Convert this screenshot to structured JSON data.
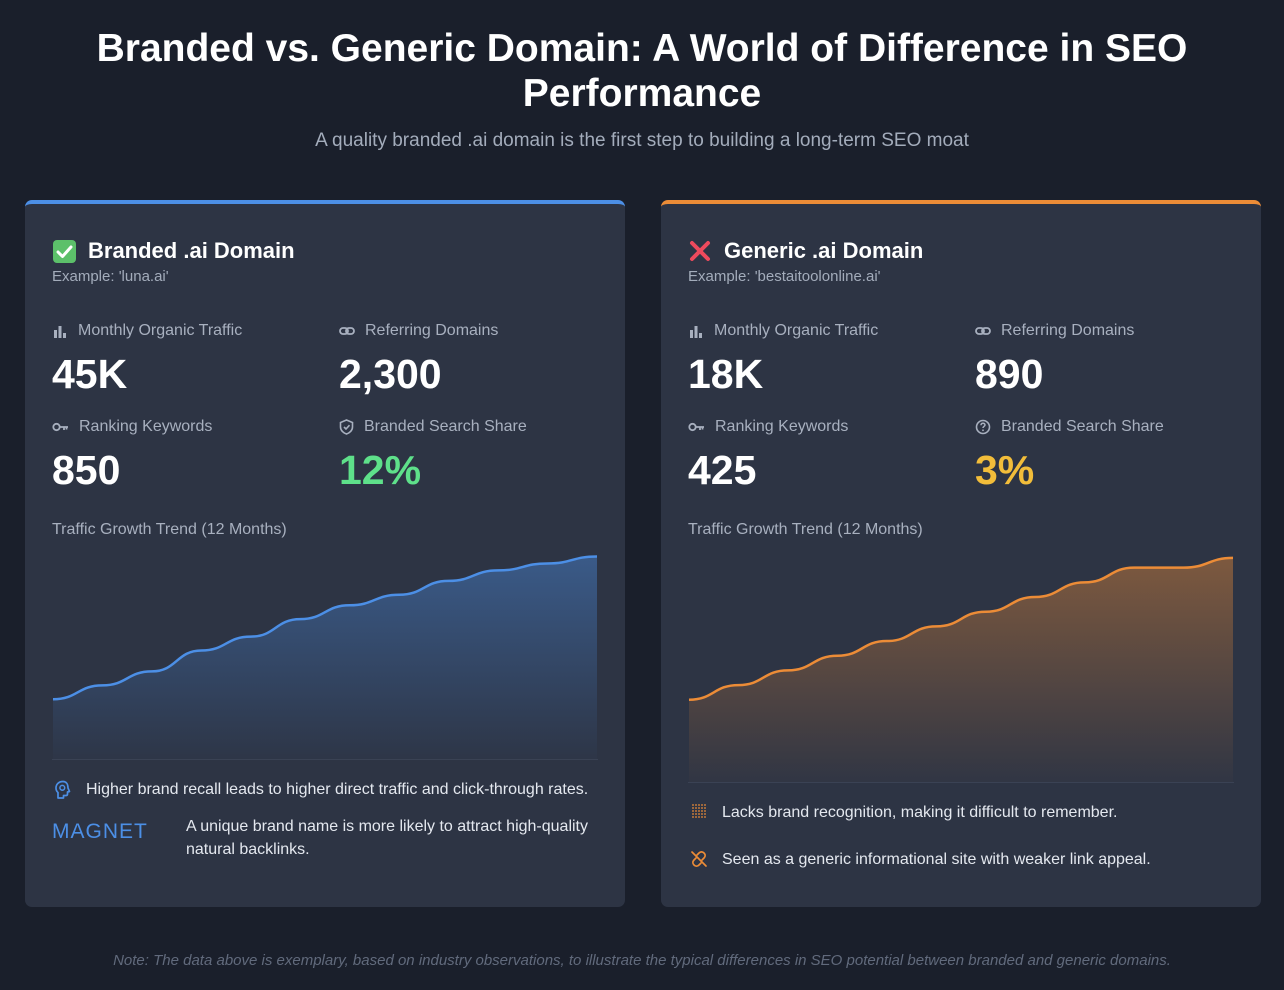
{
  "header": {
    "title": "Branded vs. Generic Domain: A World of Difference in SEO Performance",
    "subtitle": "A quality branded .ai domain is the first step to building a long-term SEO moat"
  },
  "colors": {
    "background": "#1a1f2b",
    "card": "#2d3444",
    "branded_accent": "#4c8fe6",
    "generic_accent": "#ec8c37",
    "green": "#5ee08a",
    "yellow": "#f2bd3a"
  },
  "branded": {
    "icon": "check-mark-icon",
    "title": "Branded .ai Domain",
    "example": "Example: 'luna.ai'",
    "metrics": {
      "traffic_label": "Monthly Organic Traffic",
      "traffic_value": "45K",
      "referring_label": "Referring Domains",
      "referring_value": "2,300",
      "keywords_label": "Ranking Keywords",
      "keywords_value": "850",
      "share_label": "Branded Search Share",
      "share_value": "12%"
    },
    "trend_label": "Traffic Growth Trend (12 Months)",
    "notes": [
      {
        "icon": "brain-icon",
        "text": "Higher brand recall leads to higher direct traffic and click-through rates."
      },
      {
        "icon": "magnet-logo",
        "logo_text": "MAGNET",
        "text": "A unique brand name is more likely to attract high-quality natural backlinks."
      }
    ]
  },
  "generic": {
    "icon": "cross-mark-icon",
    "title": "Generic .ai Domain",
    "example": "Example: 'bestaitoolonline.ai'",
    "metrics": {
      "traffic_label": "Monthly Organic Traffic",
      "traffic_value": "18K",
      "referring_label": "Referring Domains",
      "referring_value": "890",
      "keywords_label": "Ranking Keywords",
      "keywords_value": "425",
      "share_label": "Branded Search Share",
      "share_value": "3%"
    },
    "trend_label": "Traffic Growth Trend (12 Months)",
    "notes": [
      {
        "icon": "dotted-grid-icon",
        "text": "Lacks brand recognition, making it difficult to remember."
      },
      {
        "icon": "broken-link-icon",
        "text": "Seen as a generic informational site with weaker link appeal."
      }
    ]
  },
  "footnote": "Note: The data above is exemplary, based on industry observations, to illustrate the typical differences in SEO potential between branded and generic domains.",
  "chart_data": [
    {
      "type": "area",
      "title": "Traffic Growth Trend (12 Months)",
      "series": [
        {
          "values": [
            10,
            14,
            18,
            24,
            28,
            33,
            37,
            40,
            44,
            47,
            49,
            51
          ]
        }
      ],
      "ylim": [
        -6,
        52
      ],
      "grid": false,
      "color": "#4c8fe6"
    },
    {
      "type": "area",
      "title": "Traffic Growth Trend (12 Months)",
      "series": [
        {
          "values": [
            4,
            7,
            10,
            13,
            16,
            19,
            22,
            25,
            28,
            31,
            31,
            33
          ]
        }
      ],
      "ylim": [
        -12,
        34
      ],
      "grid": false,
      "color": "#ec8c37"
    }
  ]
}
